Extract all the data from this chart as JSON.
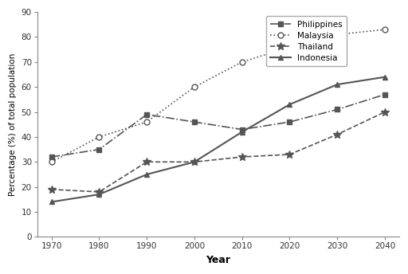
{
  "years": [
    1970,
    1980,
    1990,
    2000,
    2010,
    2020,
    2030,
    2040
  ],
  "philippines": [
    32,
    35,
    49,
    46,
    43,
    46,
    51,
    57
  ],
  "malaysia": [
    30,
    40,
    46,
    60,
    70,
    76,
    81,
    83
  ],
  "thailand": [
    19,
    18,
    30,
    30,
    32,
    33,
    41,
    50
  ],
  "indonesia": [
    14,
    17,
    25,
    30,
    42,
    53,
    61,
    64
  ],
  "xlabel": "Year",
  "ylabel": "Percentage (%) of total population",
  "ylim": [
    0,
    90
  ],
  "yticks": [
    0,
    10,
    20,
    30,
    40,
    50,
    60,
    70,
    80,
    90
  ],
  "xticks": [
    1970,
    1980,
    1990,
    2000,
    2010,
    2020,
    2030,
    2040
  ],
  "legend_labels": [
    "Philippines",
    "Malaysia",
    "Thailand",
    "Indonesia"
  ],
  "line_color": "#555555",
  "background_color": "#ffffff"
}
